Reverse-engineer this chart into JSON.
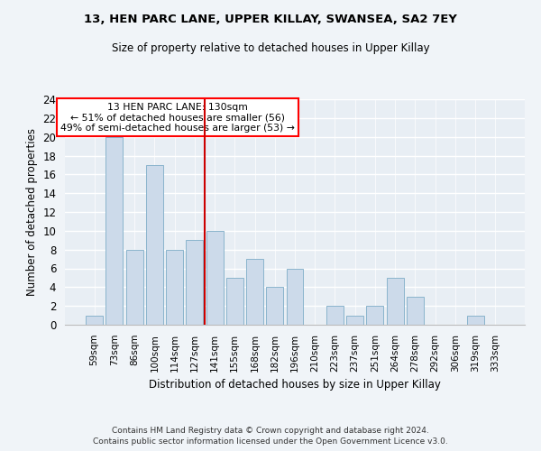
{
  "title1": "13, HEN PARC LANE, UPPER KILLAY, SWANSEA, SA2 7EY",
  "title2": "Size of property relative to detached houses in Upper Killay",
  "xlabel": "Distribution of detached houses by size in Upper Killay",
  "ylabel": "Number of detached properties",
  "categories": [
    "59sqm",
    "73sqm",
    "86sqm",
    "100sqm",
    "114sqm",
    "127sqm",
    "141sqm",
    "155sqm",
    "168sqm",
    "182sqm",
    "196sqm",
    "210sqm",
    "223sqm",
    "237sqm",
    "251sqm",
    "264sqm",
    "278sqm",
    "292sqm",
    "306sqm",
    "319sqm",
    "333sqm"
  ],
  "values": [
    1,
    20,
    8,
    17,
    8,
    9,
    10,
    5,
    7,
    4,
    6,
    0,
    2,
    1,
    2,
    5,
    3,
    0,
    0,
    1,
    0
  ],
  "bar_color": "#ccdaea",
  "bar_edge_color": "#8ab4cc",
  "reference_line_x": 5.5,
  "annotation_text": "13 HEN PARC LANE: 130sqm\n← 51% of detached houses are smaller (56)\n49% of semi-detached houses are larger (53) →",
  "annotation_box_color": "white",
  "annotation_box_edgecolor": "red",
  "red_line_color": "#cc0000",
  "ylim": [
    0,
    24
  ],
  "yticks": [
    0,
    2,
    4,
    6,
    8,
    10,
    12,
    14,
    16,
    18,
    20,
    22,
    24
  ],
  "footer1": "Contains HM Land Registry data © Crown copyright and database right 2024.",
  "footer2": "Contains public sector information licensed under the Open Government Licence v3.0.",
  "bg_color": "#f0f4f8",
  "plot_bg_color": "#e8eef4"
}
